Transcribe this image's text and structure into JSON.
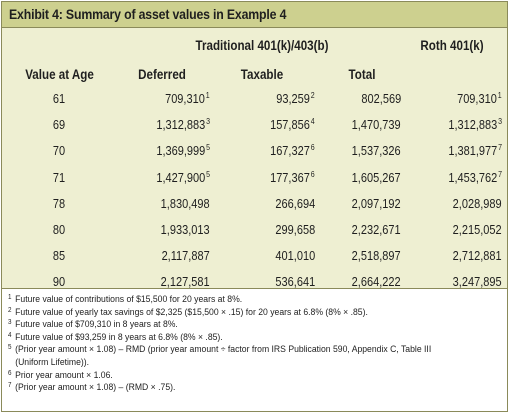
{
  "title": "Exhibit 4: Summary of asset values in Example 4",
  "groups": {
    "traditional": "Traditional 401(k)/403(b)",
    "roth": "Roth 401(k)"
  },
  "columns": {
    "age": "Value at Age",
    "deferred": "Deferred",
    "taxable": "Taxable",
    "total": "Total"
  },
  "rows": [
    {
      "age": "61",
      "deferred": "709,310",
      "deferred_note": "1",
      "taxable": "93,259",
      "taxable_note": "2",
      "total": "802,569",
      "roth": "709,310",
      "roth_note": "1"
    },
    {
      "age": "69",
      "deferred": "1,312,883",
      "deferred_note": "3",
      "taxable": "157,856",
      "taxable_note": "4",
      "total": "1,470,739",
      "roth": "1,312,883",
      "roth_note": "3"
    },
    {
      "age": "70",
      "deferred": "1,369,999",
      "deferred_note": "5",
      "taxable": "167,327",
      "taxable_note": "6",
      "total": "1,537,326",
      "roth": "1,381,977",
      "roth_note": "7"
    },
    {
      "age": "71",
      "deferred": "1,427,900",
      "deferred_note": "5",
      "taxable": "177,367",
      "taxable_note": "6",
      "total": "1,605,267",
      "roth": "1,453,762",
      "roth_note": "7"
    },
    {
      "age": "78",
      "deferred": "1,830,498",
      "deferred_note": "",
      "taxable": "266,694",
      "taxable_note": "",
      "total": "2,097,192",
      "roth": "2,028,989",
      "roth_note": ""
    },
    {
      "age": "80",
      "deferred": "1,933,013",
      "deferred_note": "",
      "taxable": "299,658",
      "taxable_note": "",
      "total": "2,232,671",
      "roth": "2,215,052",
      "roth_note": ""
    },
    {
      "age": "85",
      "deferred": "2,117,887",
      "deferred_note": "",
      "taxable": "401,010",
      "taxable_note": "",
      "total": "2,518,897",
      "roth": "2,712,881",
      "roth_note": ""
    },
    {
      "age": "90",
      "deferred": "2,127,581",
      "deferred_note": "",
      "taxable": "536,641",
      "taxable_note": "",
      "total": "2,664,222",
      "roth": "3,247,895",
      "roth_note": ""
    }
  ],
  "footnotes": [
    {
      "num": "1",
      "text": "Future value of contributions of $15,500 for 20 years at 8%."
    },
    {
      "num": "2",
      "text": "Future value of yearly tax savings of $2,325 ($15,500 × .15) for 20 years at 6.8% (8% × .85)."
    },
    {
      "num": "3",
      "text": "Future value of $709,310 in 8 years at 8%."
    },
    {
      "num": "4",
      "text": "Future value of $93,259 in 8 years at 6.8% (8% × .85)."
    },
    {
      "num": "5",
      "text": "(Prior year amount × 1.08) – RMD (prior year amount ÷ factor from IRS Publication 590, Appendix C, Table III"
    },
    {
      "num": "",
      "text": "(Uniform Lifetime))."
    },
    {
      "num": "6",
      "text": "Prior year amount × 1.06."
    },
    {
      "num": "7",
      "text": "(Prior year amount × 1.08) – (RMD × .75)."
    }
  ]
}
